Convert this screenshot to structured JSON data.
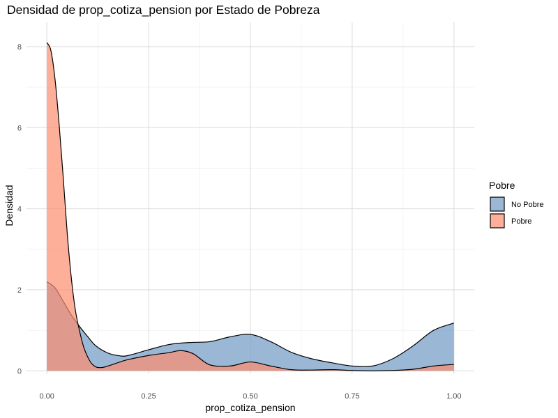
{
  "chart_data": {
    "type": "area",
    "title": "Densidad de prop_cotiza_pension por Estado de Pobreza",
    "xlabel": "prop_cotiza_pension",
    "ylabel": "Densidad",
    "xlim": [
      -0.05,
      1.05
    ],
    "ylim": [
      -0.08,
      8.6
    ],
    "x_ticks": [
      0,
      0.25,
      0.5,
      0.75,
      1.0
    ],
    "x_tick_labels": [
      "0.00",
      "0.25",
      "0.50",
      "0.75",
      "1.00"
    ],
    "y_ticks": [
      0,
      2,
      4,
      6,
      8
    ],
    "y_tick_labels": [
      "0",
      "2",
      "4",
      "6",
      "8"
    ],
    "grid": true,
    "legend": {
      "title": "Pobre",
      "position": "right"
    },
    "series": [
      {
        "name": "No Pobre",
        "color": "#7A9FC8",
        "opacity": 0.75,
        "x": [
          0,
          0.02,
          0.04,
          0.06,
          0.08,
          0.1,
          0.12,
          0.15,
          0.18,
          0.2,
          0.25,
          0.3,
          0.35,
          0.4,
          0.45,
          0.5,
          0.55,
          0.6,
          0.65,
          0.7,
          0.75,
          0.8,
          0.85,
          0.9,
          0.95,
          1.0
        ],
        "y": [
          2.2,
          2.05,
          1.72,
          1.38,
          1.1,
          0.85,
          0.62,
          0.44,
          0.37,
          0.38,
          0.52,
          0.65,
          0.7,
          0.72,
          0.84,
          0.9,
          0.72,
          0.46,
          0.3,
          0.2,
          0.12,
          0.12,
          0.3,
          0.62,
          1.0,
          1.18
        ]
      },
      {
        "name": "Pobre",
        "color": "#FC8D6D",
        "opacity": 0.7,
        "x": [
          0,
          0.01,
          0.02,
          0.03,
          0.04,
          0.05,
          0.06,
          0.07,
          0.08,
          0.09,
          0.1,
          0.11,
          0.12,
          0.13,
          0.14,
          0.15,
          0.18,
          0.2,
          0.25,
          0.3,
          0.33,
          0.36,
          0.4,
          0.45,
          0.5,
          0.55,
          0.6,
          0.65,
          0.7,
          0.75,
          0.8,
          0.85,
          0.9,
          0.95,
          1.0
        ],
        "y": [
          8.1,
          7.9,
          7.2,
          6.1,
          4.8,
          3.4,
          2.3,
          1.5,
          1.0,
          0.6,
          0.35,
          0.18,
          0.1,
          0.08,
          0.09,
          0.12,
          0.22,
          0.28,
          0.38,
          0.45,
          0.5,
          0.42,
          0.15,
          0.12,
          0.22,
          0.12,
          0.03,
          0.02,
          0.03,
          0.01,
          0.0,
          0.01,
          0.04,
          0.12,
          0.16
        ]
      }
    ]
  }
}
